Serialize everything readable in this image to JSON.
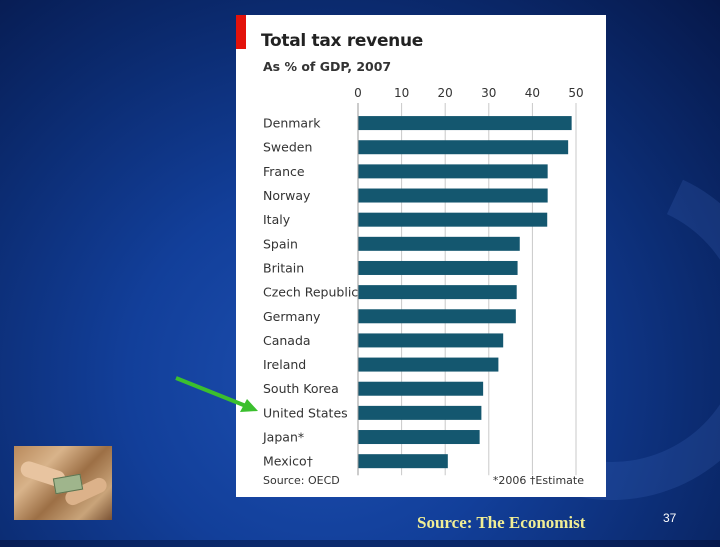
{
  "slide": {
    "caption": "Source: The Economist",
    "page_number": "37"
  },
  "colors": {
    "bar": "#14576f",
    "accent_red": "#e3120b",
    "arrow": "#3bbf2e",
    "caption": "#f1ee95"
  },
  "chart_data": {
    "type": "bar",
    "orientation": "horizontal",
    "title": "Total tax revenue",
    "subtitle": "As % of GDP, 2007",
    "categories": [
      "Denmark",
      "Sweden",
      "France",
      "Norway",
      "Italy",
      "Spain",
      "Britain",
      "Czech Republic",
      "Germany",
      "Canada",
      "Ireland",
      "South Korea",
      "United States",
      "Japan*",
      "Mexico†"
    ],
    "values": [
      49,
      48.2,
      43.5,
      43.5,
      43.4,
      37.1,
      36.6,
      36.4,
      36.2,
      33.3,
      32.2,
      28.7,
      28.3,
      27.9,
      20.6
    ],
    "xlim": [
      0,
      50
    ],
    "xticks": [
      "0",
      "10",
      "20",
      "30",
      "40",
      "50"
    ],
    "grid": true,
    "source": "Source: OECD",
    "footnote": "*2006   †Estimate",
    "highlighted_category": "United States"
  }
}
